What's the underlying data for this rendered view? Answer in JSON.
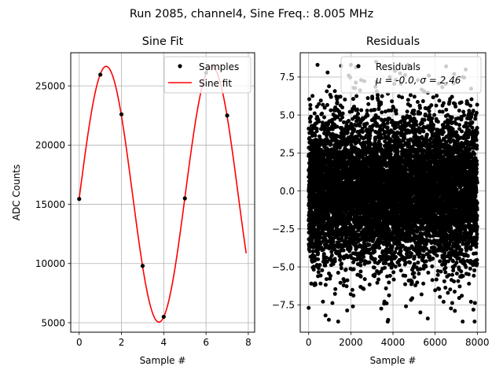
{
  "suptitle": "Run 2085, channel4, Sine Freq.: 8.005 MHz",
  "chart_data": [
    {
      "type": "line",
      "title": "Sine Fit",
      "xlabel": "Sample #",
      "ylabel": "ADC Counts",
      "xlim": [
        -0.4,
        8.3
      ],
      "ylim": [
        4200,
        27800
      ],
      "xticks": [
        0,
        2,
        4,
        6,
        8
      ],
      "yticks": [
        5000,
        10000,
        15000,
        20000,
        25000
      ],
      "grid": true,
      "legend": "top-right",
      "series": [
        {
          "name": "Samples",
          "kind": "scatter",
          "color": "#000000",
          "points": [
            [
              0,
              15450
            ],
            [
              1,
              25950
            ],
            [
              2,
              22600
            ],
            [
              3,
              9800
            ],
            [
              4,
              5500
            ],
            [
              5,
              15500
            ],
            [
              6,
              26100
            ],
            [
              7,
              22500
            ]
          ]
        },
        {
          "name": "Sine fit",
          "kind": "line",
          "color": "#ff0000",
          "model": {
            "offset": 15850,
            "amplitude": 10800,
            "samples_per_cycle": 4.995,
            "phase_rad": -0.0326,
            "x_start": 0,
            "x_end": 7.9
          }
        }
      ]
    },
    {
      "type": "scatter",
      "title": "Residuals",
      "xlabel": "Sample #",
      "xlim": [
        -400,
        8400
      ],
      "ylim": [
        -9.3,
        9.1
      ],
      "xticks": [
        0,
        2000,
        4000,
        6000,
        8000
      ],
      "yticks": [
        -7.5,
        -5.0,
        -2.5,
        0.0,
        2.5,
        5.0,
        7.5
      ],
      "grid": true,
      "legend": "top-right",
      "series": [
        {
          "name": "Residuals",
          "name_line2": "μ = -0.0, σ = 2.46",
          "color": "#000000",
          "n_points": 8000,
          "mean": 0.0,
          "sigma": 2.46,
          "outliers": [
            [
              0,
              -7.7
            ],
            [
              800,
              -8.2
            ],
            [
              1400,
              -8.6
            ],
            [
              3700,
              -7.4
            ],
            [
              5300,
              -8.0
            ],
            [
              5650,
              -8.4
            ],
            [
              6400,
              -7.3
            ],
            [
              7700,
              -7.3
            ],
            [
              900,
              7.8
            ],
            [
              1900,
              7.6
            ],
            [
              3200,
              8.5
            ],
            [
              3850,
              7.5
            ],
            [
              4100,
              7.9
            ],
            [
              5700,
              7.6
            ],
            [
              7300,
              7.5
            ],
            [
              7450,
              8.0
            ],
            [
              2100,
              -7.6
            ],
            [
              6900,
              7.7
            ]
          ]
        }
      ]
    }
  ]
}
